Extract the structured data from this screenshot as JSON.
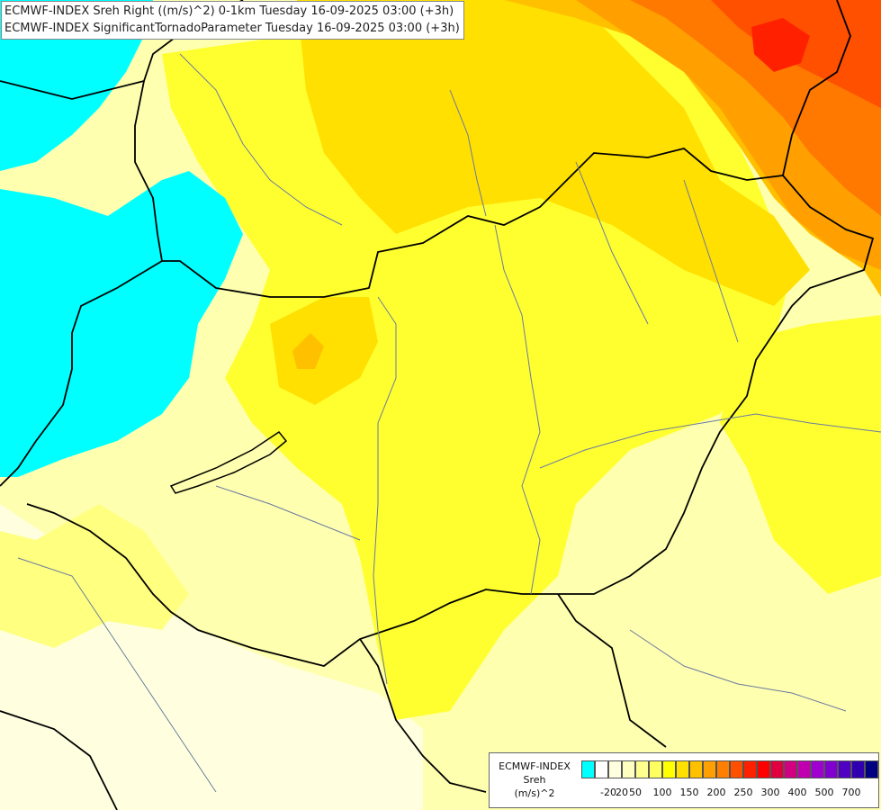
{
  "title": {
    "line1": "ECMWF-INDEX Sreh Right ((m/s)^2) 0-1km Tuesday 16-09-2025 03:00 (+3h)",
    "line2": "ECMWF-INDEX SignificantTornadoParameter Tuesday 16-09-2025 03:00 (+3h)"
  },
  "legend": {
    "line1": "ECMWF-INDEX",
    "line2": "Sreh",
    "line3": "(m/s)^2",
    "colors": [
      "#00ffff",
      "#ffffff",
      "#ffffe0",
      "#ffffc0",
      "#ffff90",
      "#ffff60",
      "#ffff00",
      "#ffe000",
      "#ffc000",
      "#ffa000",
      "#ff8000",
      "#ff5000",
      "#ff2000",
      "#ff0000",
      "#e00040",
      "#d00080",
      "#c000b0",
      "#a000d0",
      "#8000d0",
      "#5000c0",
      "#3000b0",
      "#000080"
    ],
    "ticks": [
      {
        "label": "-20",
        "index": 1
      },
      {
        "label": "20",
        "index": 2
      },
      {
        "label": "50",
        "index": 3
      },
      {
        "label": "100",
        "index": 5
      },
      {
        "label": "150",
        "index": 7
      },
      {
        "label": "200",
        "index": 9
      },
      {
        "label": "250",
        "index": 11
      },
      {
        "label": "300",
        "index": 13
      },
      {
        "label": "400",
        "index": 15
      },
      {
        "label": "500",
        "index": 17
      },
      {
        "label": "700",
        "index": 19
      }
    ]
  },
  "fields": {
    "cyan": "#00ffff",
    "lightest": "#ffffe0",
    "pale": "#ffffb0",
    "light": "#ffff80",
    "yellow": "#ffff30",
    "gold": "#ffe000",
    "amber": "#ffc000",
    "orange": "#ffa000",
    "deep_orange": "#ff7800",
    "red_orange": "#ff5000",
    "red": "#ff2000",
    "border_color": "#000000",
    "river_color": "#6a7aa0"
  }
}
